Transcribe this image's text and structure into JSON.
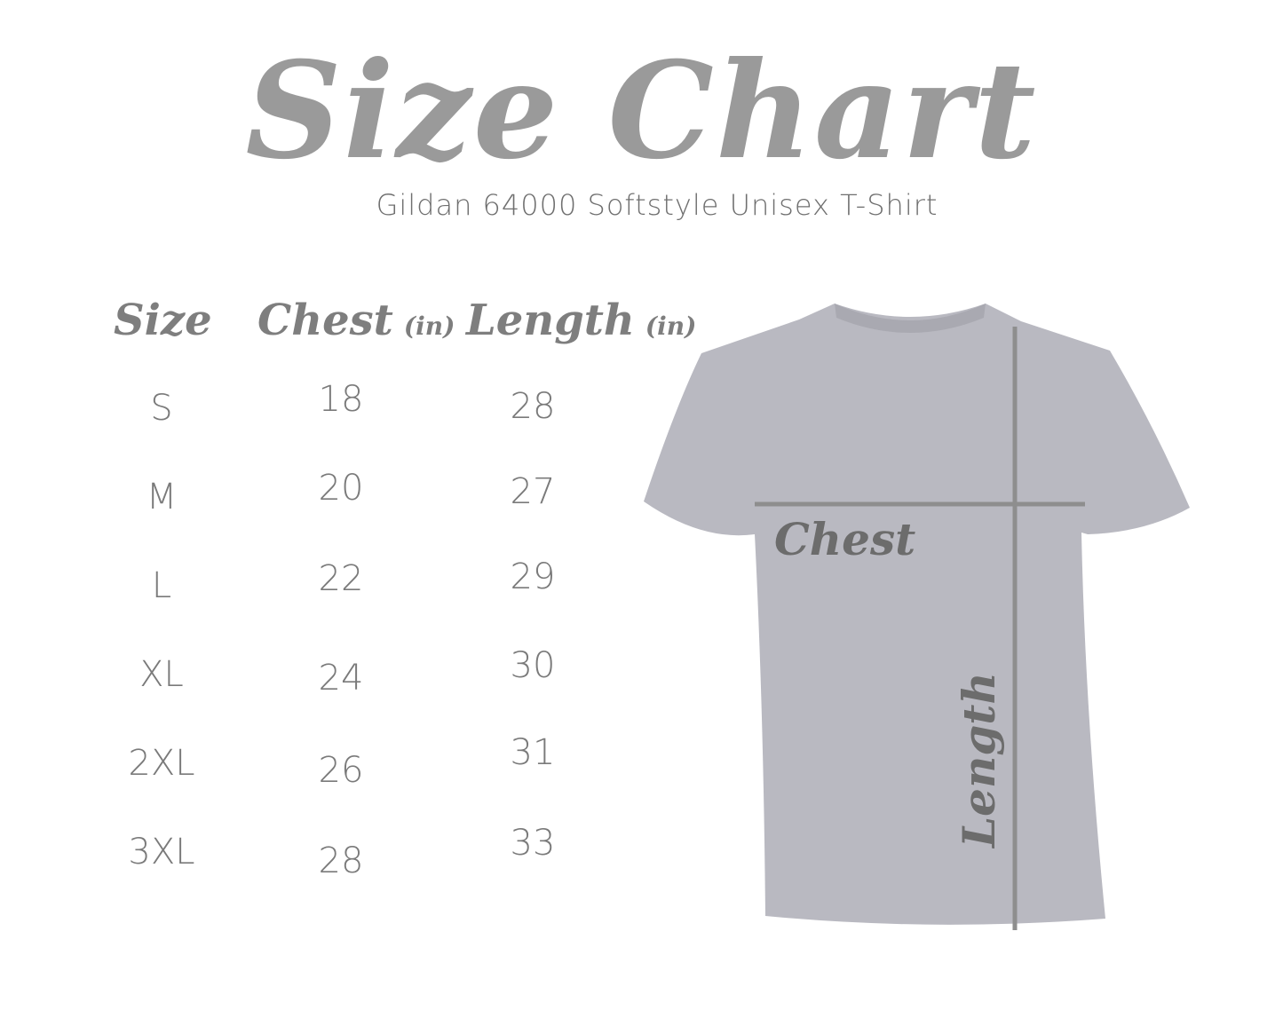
{
  "title": "Size Chart",
  "subtitle": "Gildan 64000 Softstyle Unisex T-Shirt",
  "table": {
    "headers": [
      {
        "label": "Size",
        "unit": ""
      },
      {
        "label": "Chest",
        "unit": "(in)"
      },
      {
        "label": "Length",
        "unit": "(in)"
      }
    ],
    "rows": [
      {
        "size": "S",
        "chest": "18",
        "length": "28"
      },
      {
        "size": "M",
        "chest": "20",
        "length": "27"
      },
      {
        "size": "L",
        "chest": "22",
        "length": "29"
      },
      {
        "size": "XL",
        "chest": "24",
        "length": "30"
      },
      {
        "size": "2XL",
        "chest": "26",
        "length": "31"
      },
      {
        "size": "3XL",
        "chest": "28",
        "length": "33"
      }
    ]
  },
  "diagram": {
    "chest_label": "Chest",
    "length_label": "Length",
    "shirt_color": "#b9b9c1",
    "line_color": "#8e8e8e"
  }
}
